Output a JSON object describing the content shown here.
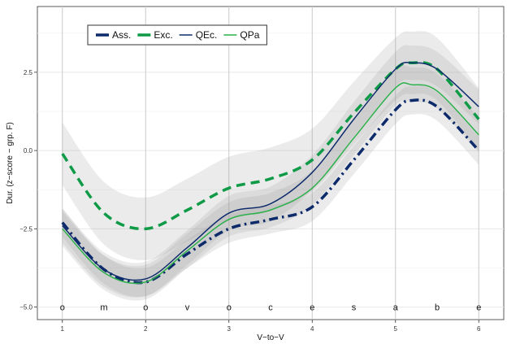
{
  "chart_data": {
    "type": "line",
    "xlabel": "V−to−V",
    "ylabel": "Dur. (z−score − grp. F)",
    "xlim": [
      0.7,
      6.3
    ],
    "ylim": [
      -5.4,
      4.6
    ],
    "x_ticks": [
      1,
      2,
      3,
      4,
      5,
      6
    ],
    "y_ticks": [
      -5.0,
      -2.5,
      0.0,
      2.5
    ],
    "y_tick_labels": [
      "−5.0",
      "−2.5",
      "0.0",
      "2.5"
    ],
    "grid": true,
    "legend_position": "top-left",
    "segment_labels": [
      {
        "x": 1.0,
        "label": "o"
      },
      {
        "x": 1.5,
        "label": "m"
      },
      {
        "x": 2.0,
        "label": "o"
      },
      {
        "x": 2.5,
        "label": "v"
      },
      {
        "x": 3.0,
        "label": "o"
      },
      {
        "x": 3.5,
        "label": "c"
      },
      {
        "x": 4.0,
        "label": "e"
      },
      {
        "x": 4.5,
        "label": "s"
      },
      {
        "x": 5.0,
        "label": "a"
      },
      {
        "x": 5.5,
        "label": "b"
      },
      {
        "x": 6.0,
        "label": "e"
      }
    ],
    "series": [
      {
        "name": "Ass.",
        "color": "#0d2b6b",
        "dash": "dashdot",
        "width": 3.5,
        "band_half_width": 0.45,
        "x": [
          1,
          1.5,
          2,
          2.5,
          3,
          3.5,
          4,
          4.5,
          5,
          5.2,
          5.5,
          6
        ],
        "y": [
          -2.3,
          -3.8,
          -4.2,
          -3.3,
          -2.5,
          -2.2,
          -1.8,
          -0.3,
          1.3,
          1.6,
          1.4,
          0.0
        ]
      },
      {
        "name": "Exc.",
        "color": "#0f9a47",
        "dash": "dashed",
        "width": 3.5,
        "band_half_width": 1.0,
        "x": [
          1,
          1.5,
          2,
          2.5,
          3,
          3.5,
          4,
          4.5,
          5,
          5.2,
          5.5,
          6
        ],
        "y": [
          -0.1,
          -2.0,
          -2.5,
          -1.9,
          -1.2,
          -0.9,
          -0.3,
          1.2,
          2.6,
          2.8,
          2.6,
          1.0
        ]
      },
      {
        "name": "QEc.",
        "color": "#0d2b6b",
        "dash": "solid",
        "width": 1.5,
        "band_half_width": 0.55,
        "x": [
          1,
          1.5,
          2,
          2.5,
          3,
          3.5,
          4,
          4.5,
          5,
          5.2,
          5.5,
          6
        ],
        "y": [
          -2.4,
          -3.8,
          -4.1,
          -3.1,
          -2.0,
          -1.7,
          -0.7,
          1.0,
          2.6,
          2.8,
          2.6,
          1.4
        ]
      },
      {
        "name": "QPa",
        "color": "#2bb04a",
        "dash": "solid",
        "width": 1.5,
        "band_half_width": 0.55,
        "x": [
          1,
          1.5,
          2,
          2.5,
          3,
          3.5,
          4,
          4.5,
          5,
          5.2,
          5.5,
          6
        ],
        "y": [
          -2.5,
          -3.9,
          -4.2,
          -3.2,
          -2.2,
          -1.9,
          -1.2,
          0.4,
          2.0,
          2.1,
          1.9,
          0.5
        ]
      }
    ]
  }
}
